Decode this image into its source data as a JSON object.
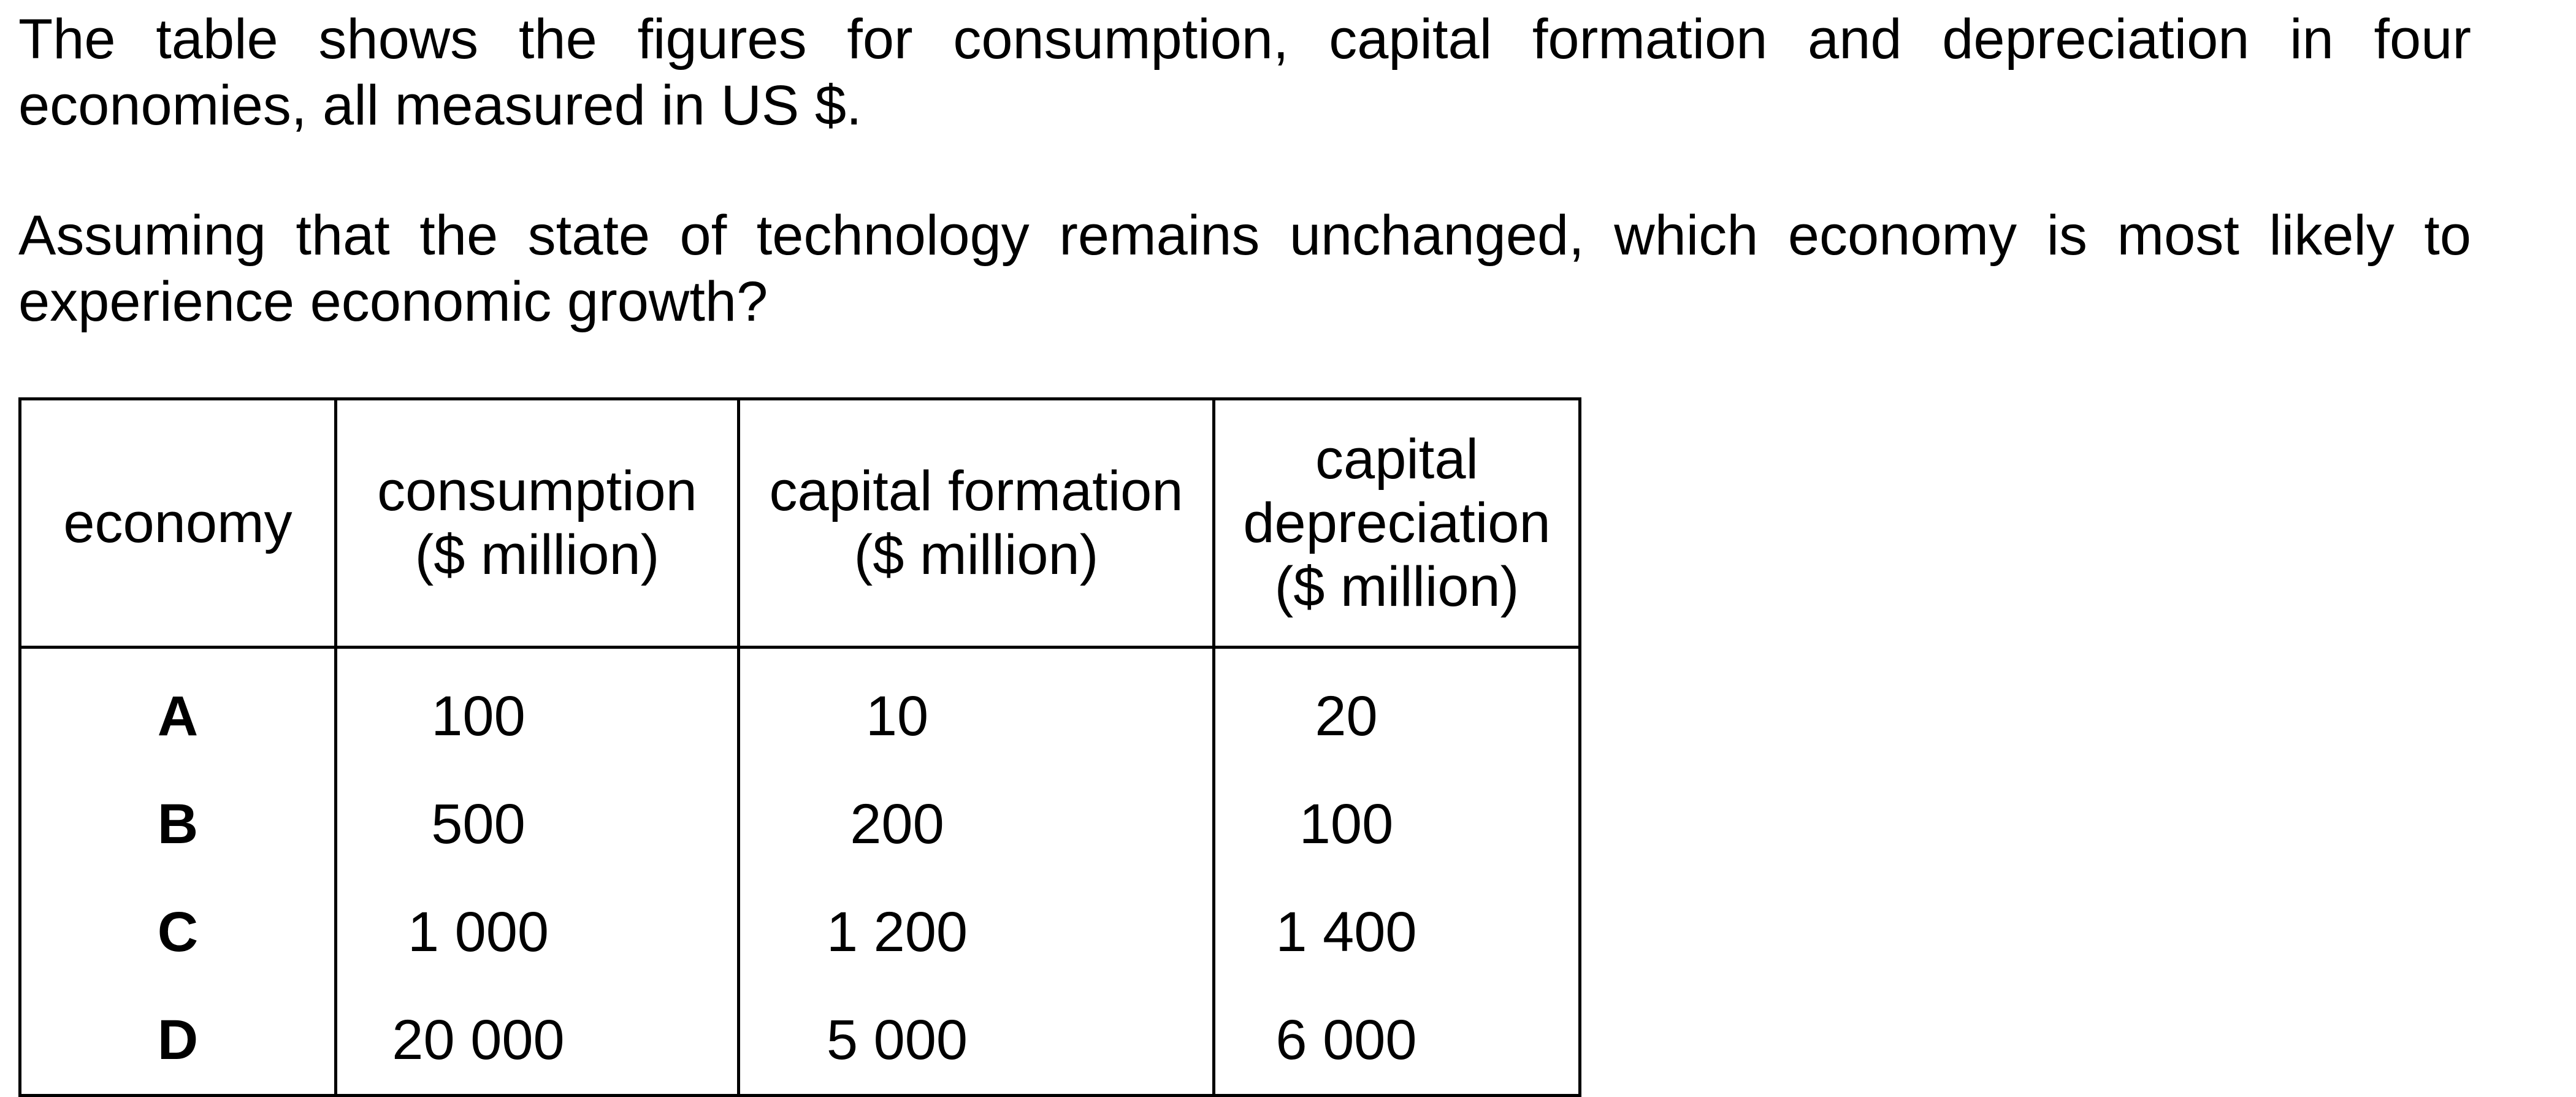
{
  "intro": {
    "line1": "The table shows the figures for consumption, capital formation and depreciation in four",
    "line2": "economies, all measured in US $."
  },
  "question": {
    "line1": "Assuming that the state of technology remains unchanged, which economy is most likely to",
    "line2": "experience economic growth?"
  },
  "table": {
    "headers": [
      [
        "economy"
      ],
      [
        "consumption",
        "($ million)"
      ],
      [
        "capital formation",
        "($ million)"
      ],
      [
        "capital",
        "depreciation",
        "($ million)"
      ]
    ],
    "rows": [
      {
        "economy": "A",
        "consumption": "100",
        "capital_formation": "10",
        "capital_depreciation": "20"
      },
      {
        "economy": "B",
        "consumption": "500",
        "capital_formation": "200",
        "capital_depreciation": "100"
      },
      {
        "economy": "C",
        "consumption": "1 000",
        "capital_formation": "1 200",
        "capital_depreciation": "1 400"
      },
      {
        "economy": "D",
        "consumption": "20 000",
        "capital_formation": "5 000",
        "capital_depreciation": "6 000"
      }
    ]
  }
}
